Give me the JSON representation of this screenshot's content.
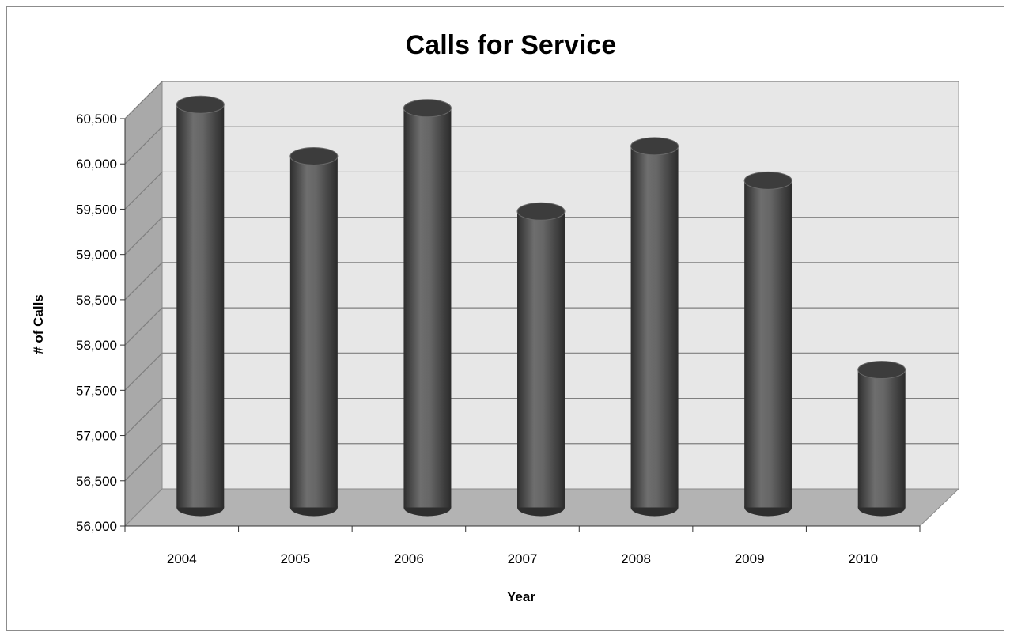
{
  "chart_data": {
    "type": "bar",
    "style": "3d-cylinder",
    "title": "Calls for Service",
    "xlabel": "Year",
    "ylabel": "# of Calls",
    "categories": [
      "2004",
      "2005",
      "2006",
      "2007",
      "2008",
      "2009",
      "2010"
    ],
    "values": [
      60450,
      59880,
      60410,
      59270,
      59990,
      59610,
      57520
    ],
    "ylim": [
      56000,
      60500
    ],
    "ytick_step": 500,
    "ytick_labels": [
      "56,000",
      "56,500",
      "57,000",
      "57,500",
      "58,000",
      "58,500",
      "59,000",
      "59,500",
      "60,000",
      "60,500"
    ],
    "grid": true,
    "legend": "none",
    "colors": {
      "bar": "#555555",
      "bar_highlight": "#7a7a7a",
      "bar_shadow": "#2e2e2e",
      "back_wall": "#e7e7e7",
      "side_wall": "#a9a9a9",
      "floor": "#b3b3b3",
      "gridline": "#7f7f7f"
    }
  }
}
